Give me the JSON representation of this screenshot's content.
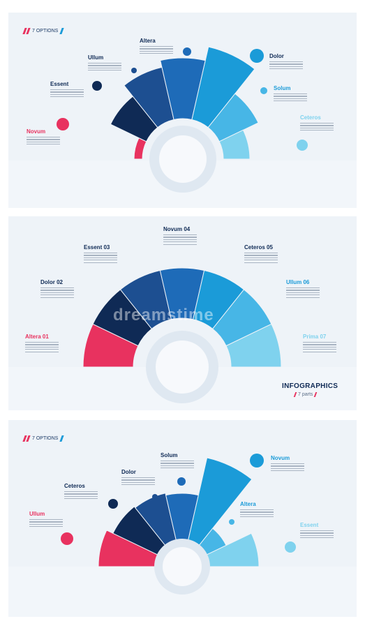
{
  "panel1": {
    "options_label": "7 OPTIONS",
    "labels": [
      "Novum",
      "Essent",
      "Ullum",
      "Altera",
      "Dolor",
      "Solum",
      "Ceteros"
    ]
  },
  "panel2": {
    "labels": [
      "Altera 01",
      "Dolor 02",
      "Essent 03",
      "Novum 04",
      "Ceteros 05",
      "Ullum 06",
      "Prima 07"
    ],
    "infographics_title": "INFOGRAPHICS",
    "infographics_sub": "7 parts",
    "watermark": "dreamstime"
  },
  "panel3": {
    "options_label": "7 OPTIONS",
    "labels": [
      "Ullum",
      "Ceteros",
      "Dolor",
      "Solum",
      "Novum",
      "Altera",
      "Essent"
    ]
  },
  "colors": {
    "pink": "#e8325f",
    "navy": "#0f2a55",
    "blue1": "#1d4f91",
    "blue2": "#1e6bb8",
    "blue3": "#1b9bd8",
    "blue4": "#47b6e6",
    "light": "#7fd2ee"
  }
}
